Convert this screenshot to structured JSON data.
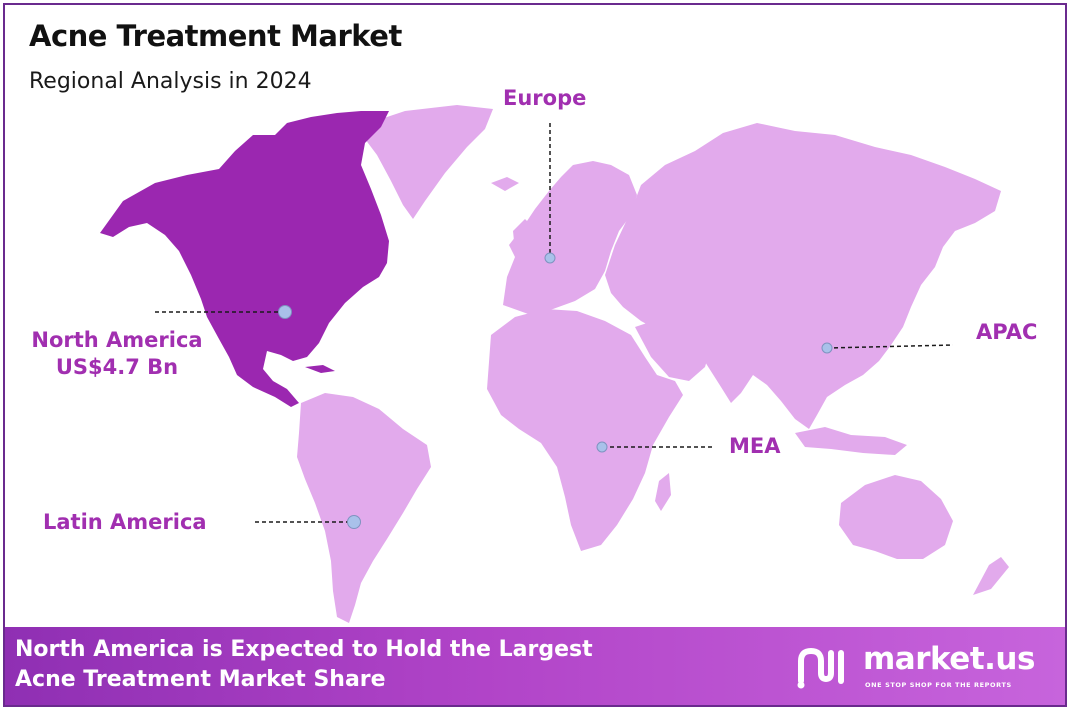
{
  "title": "Acne Treatment Market",
  "subtitle": "Regional Analysis in 2024",
  "colors": {
    "highlight_region": "#9b27b0",
    "other_regions": "#e2aaec",
    "label": "#a12fb0",
    "marker": "#a9c1ea",
    "footer_start": "#8f2fb3",
    "footer_end": "#c764dc"
  },
  "regions": {
    "north_america": {
      "name": "North America",
      "value": "US$4.7 Bn",
      "highlighted": true
    },
    "europe": {
      "name": "Europe"
    },
    "apac": {
      "name": "APAC"
    },
    "mea": {
      "name": "MEA"
    },
    "latin_america": {
      "name": "Latin America"
    }
  },
  "footer": {
    "headline": "North America is Expected to Hold the Largest\nAcne Treatment Market Share"
  },
  "logo": {
    "brand": "market.us",
    "tagline": "ONE STOP SHOP FOR THE REPORTS"
  }
}
